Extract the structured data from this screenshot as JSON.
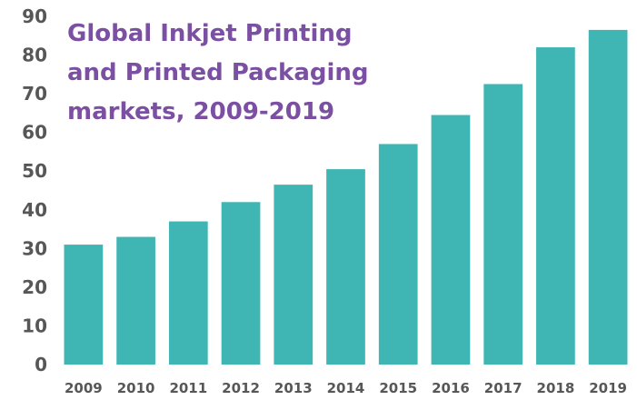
{
  "chart_data": {
    "type": "bar",
    "title_lines": [
      "Global Inkjet Printing",
      "and Printed Packaging",
      "markets, 2009-2019"
    ],
    "categories": [
      "2009",
      "2010",
      "2011",
      "2012",
      "2013",
      "2014",
      "2015",
      "2016",
      "2017",
      "2018",
      "2019"
    ],
    "values": [
      31,
      33,
      37,
      42,
      46.5,
      50.5,
      57,
      64.5,
      72.5,
      82,
      86.5
    ],
    "y_ticks": [
      "0",
      "10",
      "20",
      "30",
      "40",
      "50",
      "60",
      "70",
      "80",
      "90"
    ],
    "ylim": [
      0,
      90
    ],
    "xlabel": "",
    "ylabel": "",
    "grid": false,
    "legend": "none",
    "bar_color": "#40b6b4",
    "tick_label_color": "#575757",
    "title_color": "#7b4fa2"
  }
}
